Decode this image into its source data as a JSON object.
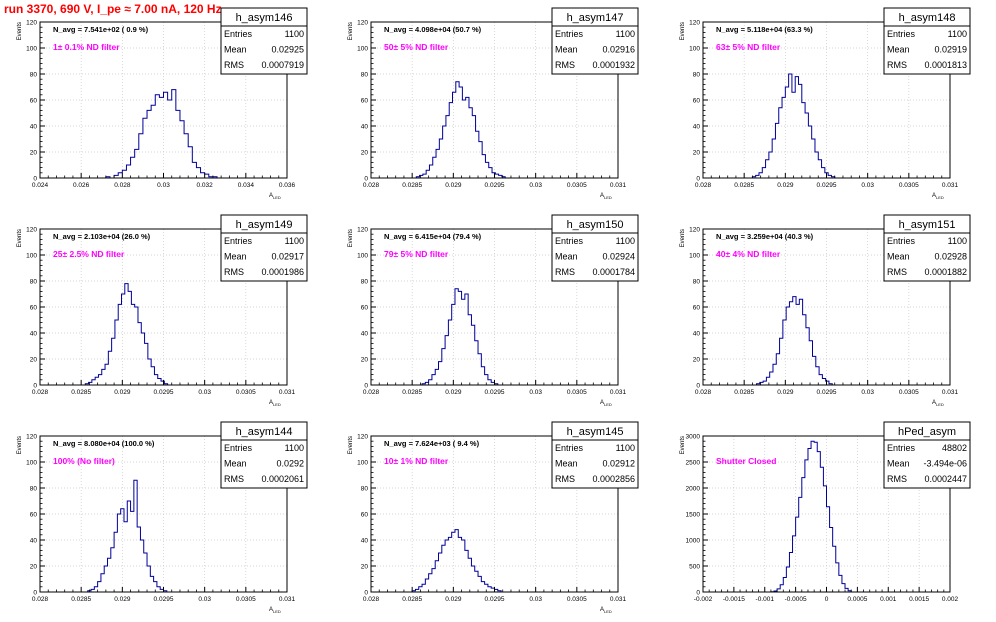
{
  "header": {
    "title": "run 3370,   690 V, I_pe ≈ 7.00 nA, 120 Hz"
  },
  "colors": {
    "title": "#ff0000",
    "histogram": "#000099",
    "annotation": "#ff00ff",
    "grid": "#c8c8c8",
    "axes": "#000000"
  },
  "chart_data": [
    {
      "type": "histogram",
      "name": "h_asym146",
      "nlabel": "N_avg = 7.541e+02 ( 0.9 %)",
      "filter": "1± 0.1% ND filter",
      "stats": {
        "entries": "1100",
        "mean": "0.02925",
        "rms": "0.0007919"
      },
      "ylabel": "Events",
      "xlabel": "A",
      "xlim": [
        0.024,
        0.036
      ],
      "ylim": [
        0,
        120
      ],
      "xticks": [
        "0.024",
        "0.026",
        "0.028",
        "0.03",
        "0.032",
        "0.034",
        "0.036"
      ],
      "yticks": [
        "0",
        "20",
        "40",
        "60",
        "80",
        "100",
        "120"
      ],
      "grid": true,
      "bins": {
        "start": 0.0272,
        "width": 0.0002,
        "counts": [
          1,
          0,
          2,
          4,
          6,
          10,
          16,
          22,
          34,
          46,
          52,
          56,
          64,
          62,
          66,
          60,
          68,
          52,
          44,
          34,
          24,
          12,
          8,
          4,
          3,
          1,
          1
        ]
      }
    },
    {
      "type": "histogram",
      "name": "h_asym147",
      "nlabel": "N_avg = 4.098e+04 (50.7 %)",
      "filter": "50± 5% ND filter",
      "stats": {
        "entries": "1100",
        "mean": "0.02916",
        "rms": "0.0001932"
      },
      "ylabel": "Events",
      "xlabel": "A",
      "xlim": [
        0.028,
        0.031
      ],
      "ylim": [
        0,
        120
      ],
      "xticks": [
        "0.028",
        "0.0285",
        "0.029",
        "0.0295",
        "0.03",
        "0.0305",
        "0.031"
      ],
      "yticks": [
        "0",
        "20",
        "40",
        "60",
        "80",
        "100",
        "120"
      ],
      "grid": true,
      "bins": {
        "start": 0.02855,
        "width": 4e-05,
        "counts": [
          1,
          2,
          3,
          6,
          10,
          16,
          22,
          30,
          40,
          48,
          58,
          66,
          74,
          70,
          60,
          62,
          54,
          48,
          36,
          28,
          18,
          12,
          8,
          4,
          3,
          2,
          1
        ]
      }
    },
    {
      "type": "histogram",
      "name": "h_asym148",
      "nlabel": "N_avg = 5.118e+04 (63.3 %)",
      "filter": "63± 5% ND filter",
      "stats": {
        "entries": "1100",
        "mean": "0.02919",
        "rms": "0.0001813"
      },
      "ylabel": "Events",
      "xlabel": "A",
      "xlim": [
        0.028,
        0.031
      ],
      "ylim": [
        0,
        120
      ],
      "xticks": [
        "0.028",
        "0.0285",
        "0.029",
        "0.0295",
        "0.03",
        "0.0305",
        "0.031"
      ],
      "yticks": [
        "0",
        "20",
        "40",
        "60",
        "80",
        "100",
        "120"
      ],
      "grid": true,
      "bins": {
        "start": 0.0286,
        "width": 4e-05,
        "counts": [
          1,
          2,
          4,
          8,
          14,
          20,
          30,
          42,
          54,
          62,
          70,
          80,
          66,
          78,
          72,
          58,
          50,
          40,
          30,
          20,
          14,
          8,
          4,
          2,
          1
        ]
      }
    },
    {
      "type": "histogram",
      "name": "h_asym149",
      "nlabel": "N_avg = 2.103e+04 (26.0 %)",
      "filter": "25± 2.5% ND filter",
      "stats": {
        "entries": "1100",
        "mean": "0.02917",
        "rms": "0.0001986"
      },
      "ylabel": "Events",
      "xlabel": "A",
      "xlim": [
        0.028,
        0.031
      ],
      "ylim": [
        0,
        120
      ],
      "xticks": [
        "0.028",
        "0.0285",
        "0.029",
        "0.0295",
        "0.03",
        "0.0305",
        "0.031"
      ],
      "yticks": [
        "0",
        "20",
        "40",
        "60",
        "80",
        "100",
        "120"
      ],
      "grid": true,
      "bins": {
        "start": 0.02855,
        "width": 4e-05,
        "counts": [
          1,
          2,
          4,
          6,
          8,
          12,
          16,
          26,
          36,
          50,
          62,
          70,
          78,
          72,
          62,
          60,
          48,
          40,
          32,
          20,
          14,
          8,
          5,
          3,
          1
        ]
      }
    },
    {
      "type": "histogram",
      "name": "h_asym150",
      "nlabel": "N_avg = 6.415e+04 (79.4 %)",
      "filter": "79± 5% ND filter",
      "stats": {
        "entries": "1100",
        "mean": "0.02924",
        "rms": "0.0001784"
      },
      "ylabel": "Events",
      "xlabel": "A",
      "xlim": [
        0.028,
        0.031
      ],
      "ylim": [
        0,
        120
      ],
      "xticks": [
        "0.028",
        "0.0285",
        "0.029",
        "0.0295",
        "0.03",
        "0.0305",
        "0.031"
      ],
      "yticks": [
        "0",
        "20",
        "40",
        "60",
        "80",
        "100",
        "120"
      ],
      "grid": true,
      "bins": {
        "start": 0.02862,
        "width": 4e-05,
        "counts": [
          1,
          2,
          4,
          8,
          12,
          18,
          28,
          38,
          50,
          62,
          74,
          72,
          66,
          70,
          54,
          46,
          34,
          24,
          14,
          8,
          4,
          2,
          1
        ]
      }
    },
    {
      "type": "histogram",
      "name": "h_asym151",
      "nlabel": "N_avg = 3.259e+04 (40.3 %)",
      "filter": "40± 4% ND filter",
      "stats": {
        "entries": "1100",
        "mean": "0.02928",
        "rms": "0.0001882"
      },
      "ylabel": "Events",
      "xlabel": "A",
      "xlim": [
        0.028,
        0.031
      ],
      "ylim": [
        0,
        120
      ],
      "xticks": [
        "0.028",
        "0.0285",
        "0.029",
        "0.0295",
        "0.03",
        "0.0305",
        "0.031"
      ],
      "yticks": [
        "0",
        "20",
        "40",
        "60",
        "80",
        "100",
        "120"
      ],
      "grid": true,
      "bins": {
        "start": 0.02865,
        "width": 4e-05,
        "counts": [
          1,
          2,
          3,
          6,
          10,
          16,
          24,
          36,
          50,
          60,
          64,
          68,
          62,
          66,
          54,
          44,
          34,
          22,
          14,
          8,
          5,
          3,
          1
        ]
      }
    },
    {
      "type": "histogram",
      "name": "h_asym144",
      "nlabel": "N_avg = 8.080e+04 (100.0 %)",
      "filter": "100% (No filter)",
      "stats": {
        "entries": "1100",
        "mean": "0.0292",
        "rms": "0.0002061"
      },
      "ylabel": "Events",
      "xlabel": "A",
      "xlim": [
        0.028,
        0.031
      ],
      "ylim": [
        0,
        120
      ],
      "xticks": [
        "0.028",
        "0.0285",
        "0.029",
        "0.0295",
        "0.03",
        "0.0305",
        "0.031"
      ],
      "yticks": [
        "0",
        "20",
        "40",
        "60",
        "80",
        "100",
        "120"
      ],
      "grid": true,
      "bins": {
        "start": 0.02858,
        "width": 4e-05,
        "counts": [
          1,
          2,
          4,
          8,
          14,
          20,
          26,
          34,
          46,
          60,
          64,
          54,
          70,
          62,
          86,
          50,
          40,
          30,
          20,
          12,
          8,
          4,
          2,
          1
        ]
      }
    },
    {
      "type": "histogram",
      "name": "h_asym145",
      "nlabel": "N_avg = 7.624e+03 ( 9.4 %)",
      "filter": "10± 1% ND filter",
      "stats": {
        "entries": "1100",
        "mean": "0.02912",
        "rms": "0.0002856"
      },
      "ylabel": "Events",
      "xlabel": "A",
      "xlim": [
        0.028,
        0.031
      ],
      "ylim": [
        0,
        120
      ],
      "xticks": [
        "0.028",
        "0.0285",
        "0.029",
        "0.0295",
        "0.03",
        "0.0305",
        "0.031"
      ],
      "yticks": [
        "0",
        "20",
        "40",
        "60",
        "80",
        "100",
        "120"
      ],
      "grid": true,
      "bins": {
        "start": 0.0285,
        "width": 4e-05,
        "counts": [
          1,
          2,
          4,
          6,
          10,
          14,
          18,
          24,
          30,
          36,
          40,
          42,
          46,
          48,
          42,
          40,
          32,
          26,
          20,
          16,
          12,
          8,
          6,
          4,
          3,
          2,
          1
        ]
      }
    },
    {
      "type": "histogram",
      "name": "hPed_asym",
      "nlabel": "",
      "filter": "Shutter Closed",
      "stats": {
        "entries": "48802",
        "mean": "-3.494e-06",
        "rms": "0.0002447"
      },
      "ylabel": "Events",
      "xlabel": "",
      "xlim": [
        -0.002,
        0.002
      ],
      "ylim": [
        0,
        3000
      ],
      "xticks": [
        "-0.002",
        "-0.0015",
        "-0.001",
        "-0.0005",
        "0",
        "0.0005",
        "0.001",
        "0.0015",
        "0.002"
      ],
      "yticks": [
        "0",
        "500",
        "1000",
        "1500",
        "2000",
        "2500",
        "3000"
      ],
      "grid": true,
      "bins": {
        "start": -0.0009,
        "width": 5e-05,
        "counts": [
          5,
          20,
          60,
          140,
          280,
          480,
          760,
          1080,
          1440,
          1820,
          2200,
          2540,
          2760,
          2900,
          2880,
          2700,
          2400,
          2040,
          1640,
          1240,
          880,
          560,
          320,
          160,
          70,
          25
        ]
      }
    }
  ]
}
